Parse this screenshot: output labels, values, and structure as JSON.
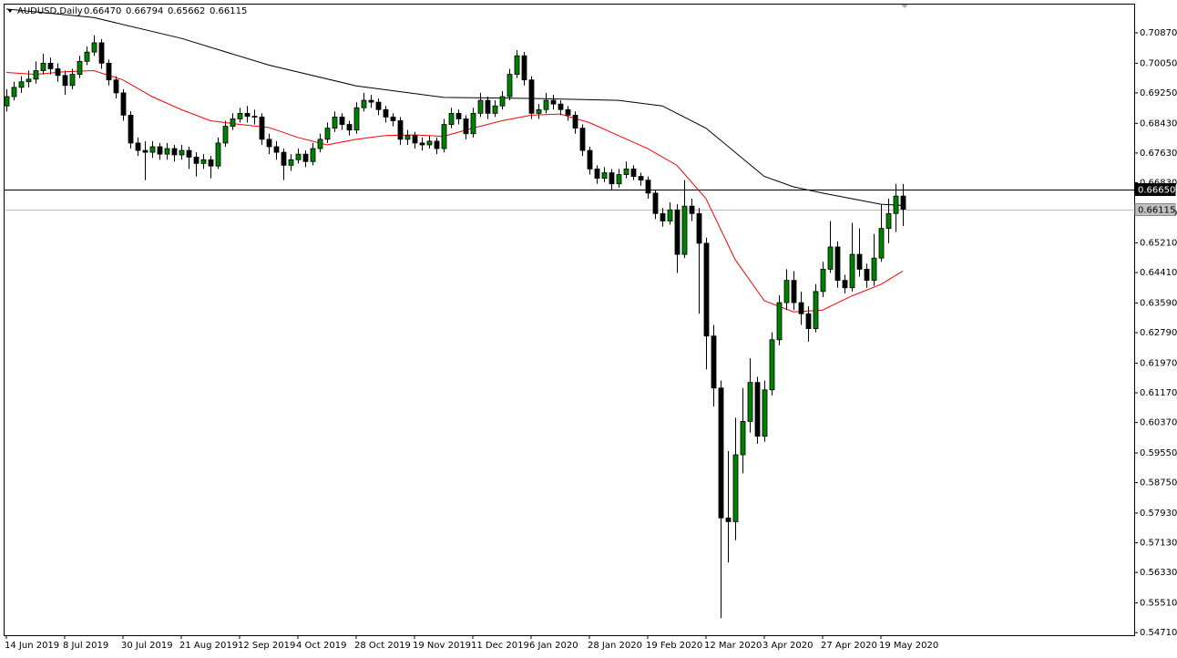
{
  "chart_data": {
    "type": "candlestick",
    "header": {
      "symbol": "AUDUSD,Daily",
      "values": [
        {
          "value": 0.6647,
          "label": "0.66470"
        },
        {
          "value": 0.66794,
          "label": "0.66794"
        },
        {
          "value": 0.65662,
          "label": "0.65662"
        },
        {
          "value": 0.66115,
          "label": "0.66115"
        }
      ]
    },
    "categories": [
      "14 Jun 2019",
      null,
      null,
      null,
      null,
      null,
      null,
      null,
      "8 Jul 2019",
      null,
      null,
      null,
      null,
      null,
      null,
      null,
      "30 Jul 2019",
      null,
      null,
      null,
      null,
      null,
      null,
      null,
      "21 Aug 2019",
      null,
      null,
      null,
      null,
      null,
      null,
      null,
      "12 Sep 2019",
      null,
      null,
      null,
      null,
      null,
      null,
      null,
      "4 Oct 2019",
      null,
      null,
      null,
      null,
      null,
      null,
      null,
      "28 Oct 2019",
      null,
      null,
      null,
      null,
      null,
      null,
      null,
      "19 Nov 2019",
      null,
      null,
      null,
      null,
      null,
      null,
      null,
      "11 Dec 2019",
      null,
      null,
      null,
      null,
      null,
      null,
      null,
      "6 Jan 2020",
      null,
      null,
      null,
      null,
      null,
      null,
      null,
      "28 Jan 2020",
      null,
      null,
      null,
      null,
      null,
      null,
      null,
      "19 Feb 2020",
      null,
      null,
      null,
      null,
      null,
      null,
      null,
      "12 Mar 2020",
      null,
      null,
      null,
      null,
      null,
      null,
      null,
      "3 Apr 2020",
      null,
      null,
      null,
      null,
      null,
      null,
      null,
      "27 Apr 2020",
      null,
      null,
      null,
      null,
      null,
      null,
      null,
      "19 May 2020",
      null,
      null,
      null
    ],
    "open": [
      0.689,
      0.6915,
      0.694,
      0.6955,
      0.6962,
      0.6985,
      0.7005,
      0.699,
      0.6972,
      0.6945,
      0.6975,
      0.701,
      0.7035,
      0.706,
      0.7005,
      0.696,
      0.6925,
      0.6865,
      0.679,
      0.677,
      0.6765,
      0.678,
      0.676,
      0.6775,
      0.6758,
      0.677,
      0.6752,
      0.6735,
      0.6745,
      0.6728,
      0.679,
      0.6835,
      0.6855,
      0.687,
      0.6862,
      0.686,
      0.68,
      0.678,
      0.6765,
      0.673,
      0.6745,
      0.676,
      0.674,
      0.6775,
      0.68,
      0.683,
      0.686,
      0.684,
      0.6825,
      0.6885,
      0.6905,
      0.69,
      0.688,
      0.686,
      0.685,
      0.68,
      0.681,
      0.679,
      0.6785,
      0.6795,
      0.6775,
      0.684,
      0.687,
      0.6855,
      0.6815,
      0.687,
      0.6905,
      0.687,
      0.689,
      0.6915,
      0.6975,
      0.7025,
      0.696,
      0.687,
      0.688,
      0.6905,
      0.6895,
      0.688,
      0.6865,
      0.683,
      0.677,
      0.672,
      0.6695,
      0.671,
      0.668,
      0.6705,
      0.672,
      0.67,
      0.669,
      0.6655,
      0.66,
      0.658,
      0.661,
      0.649,
      0.662,
      0.66,
      0.652,
      0.627,
      0.613,
      0.578,
      0.577,
      0.595,
      0.604,
      0.6145,
      0.6,
      0.6125,
      0.626,
      0.636,
      0.642,
      0.636,
      0.633,
      0.629,
      0.639,
      0.645,
      0.651,
      0.642,
      0.64,
      0.649,
      0.645,
      0.642,
      0.648,
      0.656,
      0.66,
      0.6647
    ],
    "high": [
      0.6935,
      0.6955,
      0.697,
      0.6985,
      0.701,
      0.703,
      0.702,
      0.7005,
      0.6985,
      0.699,
      0.7025,
      0.705,
      0.708,
      0.707,
      0.7015,
      0.697,
      0.6935,
      0.6875,
      0.6805,
      0.6795,
      0.6795,
      0.679,
      0.679,
      0.6785,
      0.6785,
      0.678,
      0.6765,
      0.676,
      0.6755,
      0.6805,
      0.685,
      0.687,
      0.6885,
      0.689,
      0.688,
      0.687,
      0.6815,
      0.6795,
      0.6775,
      0.676,
      0.6775,
      0.677,
      0.679,
      0.6815,
      0.6845,
      0.6875,
      0.687,
      0.685,
      0.69,
      0.6925,
      0.692,
      0.691,
      0.689,
      0.687,
      0.686,
      0.6825,
      0.682,
      0.6805,
      0.681,
      0.6805,
      0.6855,
      0.6885,
      0.688,
      0.6865,
      0.6885,
      0.6925,
      0.6915,
      0.6905,
      0.693,
      0.699,
      0.704,
      0.7035,
      0.697,
      0.6895,
      0.6925,
      0.692,
      0.6905,
      0.689,
      0.6875,
      0.684,
      0.678,
      0.673,
      0.6725,
      0.672,
      0.672,
      0.674,
      0.673,
      0.671,
      0.67,
      0.6665,
      0.6615,
      0.663,
      0.6625,
      0.669,
      0.664,
      0.6615,
      0.6535,
      0.63,
      0.615,
      0.596,
      0.605,
      0.613,
      0.621,
      0.616,
      0.615,
      0.628,
      0.638,
      0.645,
      0.6445,
      0.639,
      0.635,
      0.641,
      0.647,
      0.658,
      0.6525,
      0.6435,
      0.6575,
      0.656,
      0.6465,
      0.6545,
      0.6625,
      0.664,
      0.668,
      0.66794
    ],
    "low": [
      0.6875,
      0.6905,
      0.6925,
      0.694,
      0.695,
      0.6975,
      0.6975,
      0.6955,
      0.692,
      0.6935,
      0.6965,
      0.7,
      0.7025,
      0.699,
      0.6945,
      0.691,
      0.685,
      0.6775,
      0.6755,
      0.669,
      0.675,
      0.6745,
      0.6745,
      0.674,
      0.6745,
      0.672,
      0.67,
      0.672,
      0.6695,
      0.672,
      0.678,
      0.6825,
      0.6845,
      0.6845,
      0.684,
      0.6785,
      0.676,
      0.6745,
      0.669,
      0.6715,
      0.6735,
      0.6725,
      0.673,
      0.6765,
      0.679,
      0.682,
      0.6825,
      0.681,
      0.6815,
      0.6875,
      0.6885,
      0.6865,
      0.6845,
      0.6835,
      0.6785,
      0.6785,
      0.6775,
      0.677,
      0.6775,
      0.676,
      0.6765,
      0.683,
      0.684,
      0.68,
      0.6805,
      0.686,
      0.6855,
      0.686,
      0.688,
      0.6905,
      0.6965,
      0.6945,
      0.6855,
      0.6855,
      0.687,
      0.688,
      0.6865,
      0.685,
      0.6815,
      0.6755,
      0.6705,
      0.668,
      0.6685,
      0.6665,
      0.667,
      0.6695,
      0.669,
      0.6675,
      0.664,
      0.6585,
      0.6565,
      0.657,
      0.644,
      0.648,
      0.658,
      0.633,
      0.618,
      0.608,
      0.551,
      0.566,
      0.572,
      0.59,
      0.601,
      0.598,
      0.5985,
      0.611,
      0.6245,
      0.634,
      0.634,
      0.63,
      0.6255,
      0.628,
      0.6375,
      0.644,
      0.64,
      0.6385,
      0.639,
      0.643,
      0.64,
      0.6405,
      0.647,
      0.652,
      0.655,
      0.65662
    ],
    "close": [
      0.6915,
      0.694,
      0.6955,
      0.6962,
      0.6985,
      0.7005,
      0.699,
      0.6972,
      0.6945,
      0.6975,
      0.701,
      0.7035,
      0.706,
      0.7005,
      0.696,
      0.6925,
      0.6865,
      0.679,
      0.677,
      0.6765,
      0.678,
      0.676,
      0.6775,
      0.6758,
      0.677,
      0.6752,
      0.6735,
      0.6745,
      0.6728,
      0.679,
      0.6835,
      0.6855,
      0.687,
      0.6862,
      0.686,
      0.68,
      0.678,
      0.6765,
      0.673,
      0.6745,
      0.676,
      0.674,
      0.6775,
      0.68,
      0.683,
      0.686,
      0.684,
      0.6825,
      0.6885,
      0.6905,
      0.69,
      0.688,
      0.686,
      0.685,
      0.68,
      0.681,
      0.679,
      0.6785,
      0.6795,
      0.6775,
      0.684,
      0.687,
      0.6855,
      0.6815,
      0.687,
      0.6905,
      0.687,
      0.689,
      0.6915,
      0.6975,
      0.7025,
      0.696,
      0.687,
      0.688,
      0.6905,
      0.6895,
      0.688,
      0.6865,
      0.683,
      0.677,
      0.672,
      0.6695,
      0.671,
      0.668,
      0.6705,
      0.672,
      0.67,
      0.669,
      0.6655,
      0.66,
      0.658,
      0.661,
      0.649,
      0.662,
      0.66,
      0.652,
      0.627,
      0.613,
      0.578,
      0.577,
      0.595,
      0.604,
      0.6145,
      0.6,
      0.6125,
      0.626,
      0.636,
      0.642,
      0.636,
      0.633,
      0.629,
      0.639,
      0.645,
      0.651,
      0.642,
      0.64,
      0.649,
      0.645,
      0.642,
      0.648,
      0.656,
      0.66,
      0.6647,
      0.66115
    ],
    "up_color": "#008000",
    "down_color": "#000000",
    "lines": [
      {
        "color": "#ff0000",
        "x": [
          0,
          4,
          8,
          12,
          16,
          20,
          24,
          28,
          32,
          36,
          40,
          44,
          48,
          52,
          56,
          60,
          64,
          68,
          72,
          76,
          80,
          84,
          88,
          92,
          96,
          100,
          104,
          108,
          112,
          116,
          120,
          123
        ],
        "values": [
          0.698,
          0.6975,
          0.6982,
          0.6985,
          0.696,
          0.6915,
          0.688,
          0.685,
          0.684,
          0.6832,
          0.6805,
          0.6785,
          0.68,
          0.681,
          0.6812,
          0.6808,
          0.683,
          0.685,
          0.6865,
          0.6868,
          0.6845,
          0.681,
          0.6775,
          0.673,
          0.664,
          0.6476,
          0.6365,
          0.6335,
          0.634,
          0.6378,
          0.6409,
          0.6445
        ]
      },
      {
        "color": "#000000",
        "x": [
          0,
          12,
          24,
          36,
          48,
          60,
          72,
          84,
          90,
          96,
          100,
          104,
          108,
          112,
          116,
          120,
          123
        ],
        "values": [
          0.7151,
          0.7128,
          0.7072,
          0.7,
          0.6944,
          0.6913,
          0.691,
          0.6905,
          0.689,
          0.683,
          0.6765,
          0.67,
          0.6672,
          0.6655,
          0.664,
          0.6625,
          0.6622
        ]
      }
    ],
    "hlines": [
      {
        "value": 0.6665,
        "label": "0.66650",
        "color": "#000000"
      },
      {
        "value": 0.66115,
        "label": "0.66115",
        "color": "#c0c0c0"
      }
    ],
    "ylim": [
      0.5464,
      0.7163
    ],
    "yticks": [
      {
        "value": 0.7087,
        "label": "0.70870"
      },
      {
        "value": 0.7005,
        "label": "0.70050"
      },
      {
        "value": 0.6925,
        "label": "0.69250"
      },
      {
        "value": 0.6843,
        "label": "0.68430"
      },
      {
        "value": 0.6763,
        "label": "0.67630"
      },
      {
        "value": 0.6683,
        "label": "0.66830"
      },
      {
        "value": 0.6601,
        "label": "0.66010"
      },
      {
        "value": 0.6521,
        "label": "0.65210"
      },
      {
        "value": 0.6441,
        "label": "0.64410"
      },
      {
        "value": 0.6359,
        "label": "0.63590"
      },
      {
        "value": 0.6279,
        "label": "0.62790"
      },
      {
        "value": 0.6197,
        "label": "0.61970"
      },
      {
        "value": 0.6117,
        "label": "0.61170"
      },
      {
        "value": 0.6037,
        "label": "0.60370"
      },
      {
        "value": 0.5955,
        "label": "0.59550"
      },
      {
        "value": 0.5875,
        "label": "0.58750"
      },
      {
        "value": 0.5793,
        "label": "0.57930"
      },
      {
        "value": 0.5713,
        "label": "0.57130"
      },
      {
        "value": 0.5633,
        "label": "0.56330"
      },
      {
        "value": 0.5551,
        "label": "0.55510"
      },
      {
        "value": 0.5471,
        "label": "0.54710"
      }
    ]
  }
}
